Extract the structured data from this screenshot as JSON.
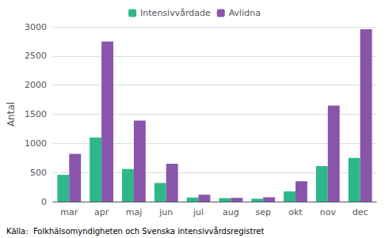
{
  "chart_data": {
    "type": "bar",
    "categories": [
      "mar",
      "apr",
      "maj",
      "jun",
      "jul",
      "aug",
      "sep",
      "okt",
      "nov",
      "dec"
    ],
    "series": [
      {
        "name": "Intensivvårdade",
        "color": "#2db88a",
        "values": [
          460,
          1100,
          560,
          320,
          70,
          60,
          50,
          175,
          610,
          750
        ]
      },
      {
        "name": "Avlidna",
        "color": "#8855aa",
        "values": [
          820,
          2750,
          1390,
          650,
          120,
          65,
          75,
          350,
          1650,
          2960
        ]
      }
    ],
    "ylabel": "Antal",
    "ylim": [
      0,
      3000
    ],
    "yticks": [
      0,
      500,
      1000,
      1500,
      2000,
      2500,
      3000
    ],
    "grid": true,
    "legend": "top",
    "annotations": [
      "Källa:  Folkhälsomyndigheten och Svenska intensivvårdsregistret"
    ]
  }
}
